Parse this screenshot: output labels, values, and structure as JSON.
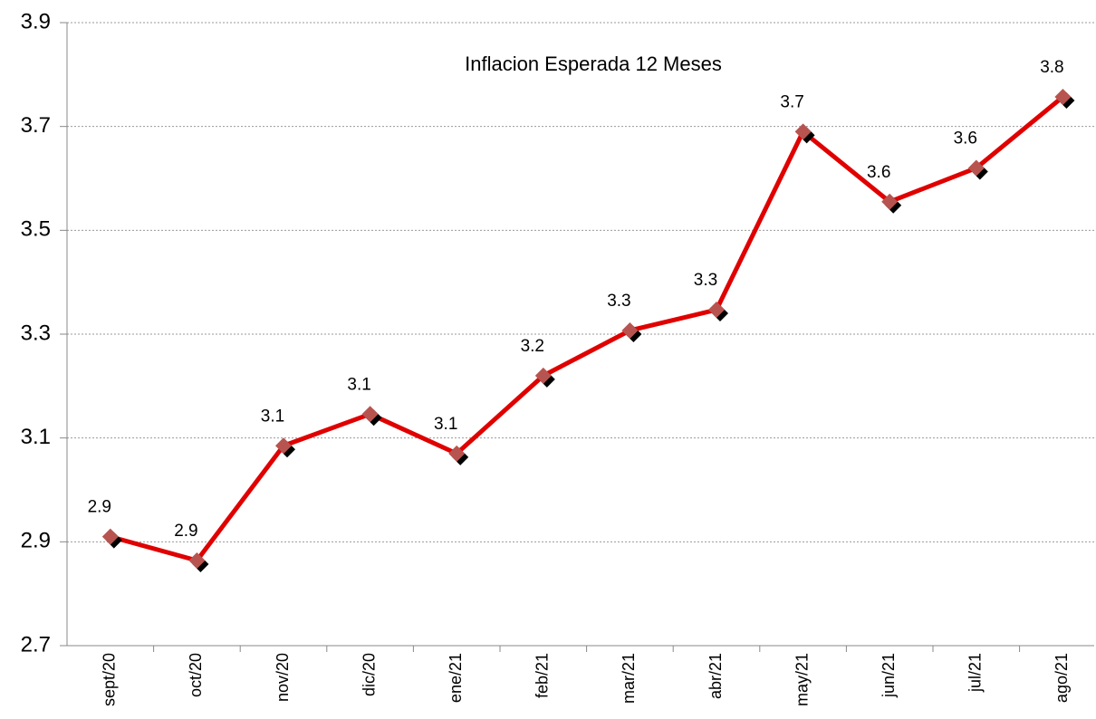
{
  "chart_data": {
    "type": "line",
    "title": "Inflacion Esperada 12 Meses",
    "categories": [
      "sept/20",
      "oct/20",
      "nov/20",
      "dic/20",
      "ene/21",
      "feb/21",
      "mar/21",
      "abr/21",
      "may/21",
      "jun/21",
      "jul/21",
      "ago/21"
    ],
    "series": [
      {
        "name": "Inflacion Esperada 12 Meses",
        "color": "#e00000",
        "values": [
          2.91,
          2.864,
          3.085,
          3.146,
          3.07,
          3.22,
          3.307,
          3.347,
          3.69,
          3.555,
          3.62,
          3.757
        ],
        "value_labels": [
          "2.9",
          "2.9",
          "3.1",
          "3.1",
          "3.1",
          "3.2",
          "3.3",
          "3.3",
          "3.7",
          "3.6",
          "3.6",
          "3.8"
        ]
      }
    ],
    "ylim": [
      2.7,
      3.9
    ],
    "yticks": [
      2.7,
      2.9,
      3.1,
      3.3,
      3.5,
      3.7,
      3.9
    ],
    "grid": true
  }
}
